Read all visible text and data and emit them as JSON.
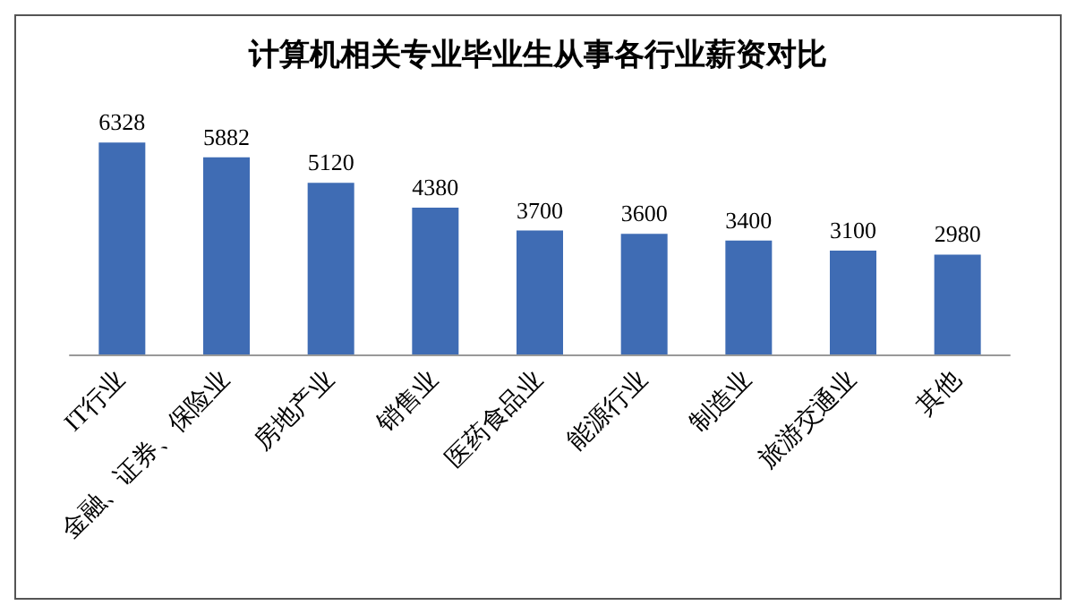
{
  "chart_data": {
    "type": "bar",
    "title": "计算机相关专业毕业生从事各行业薪资对比",
    "categories": [
      "IT行业",
      "金融、证券、保险业",
      "房地产业",
      "销售业",
      "医药食品业",
      "能源行业",
      "制造业",
      "旅游交通业",
      "其他"
    ],
    "values": [
      6328,
      5882,
      5120,
      4380,
      3700,
      3600,
      3400,
      3100,
      2980
    ],
    "color": "#3f6cb4",
    "data_labels": true
  }
}
